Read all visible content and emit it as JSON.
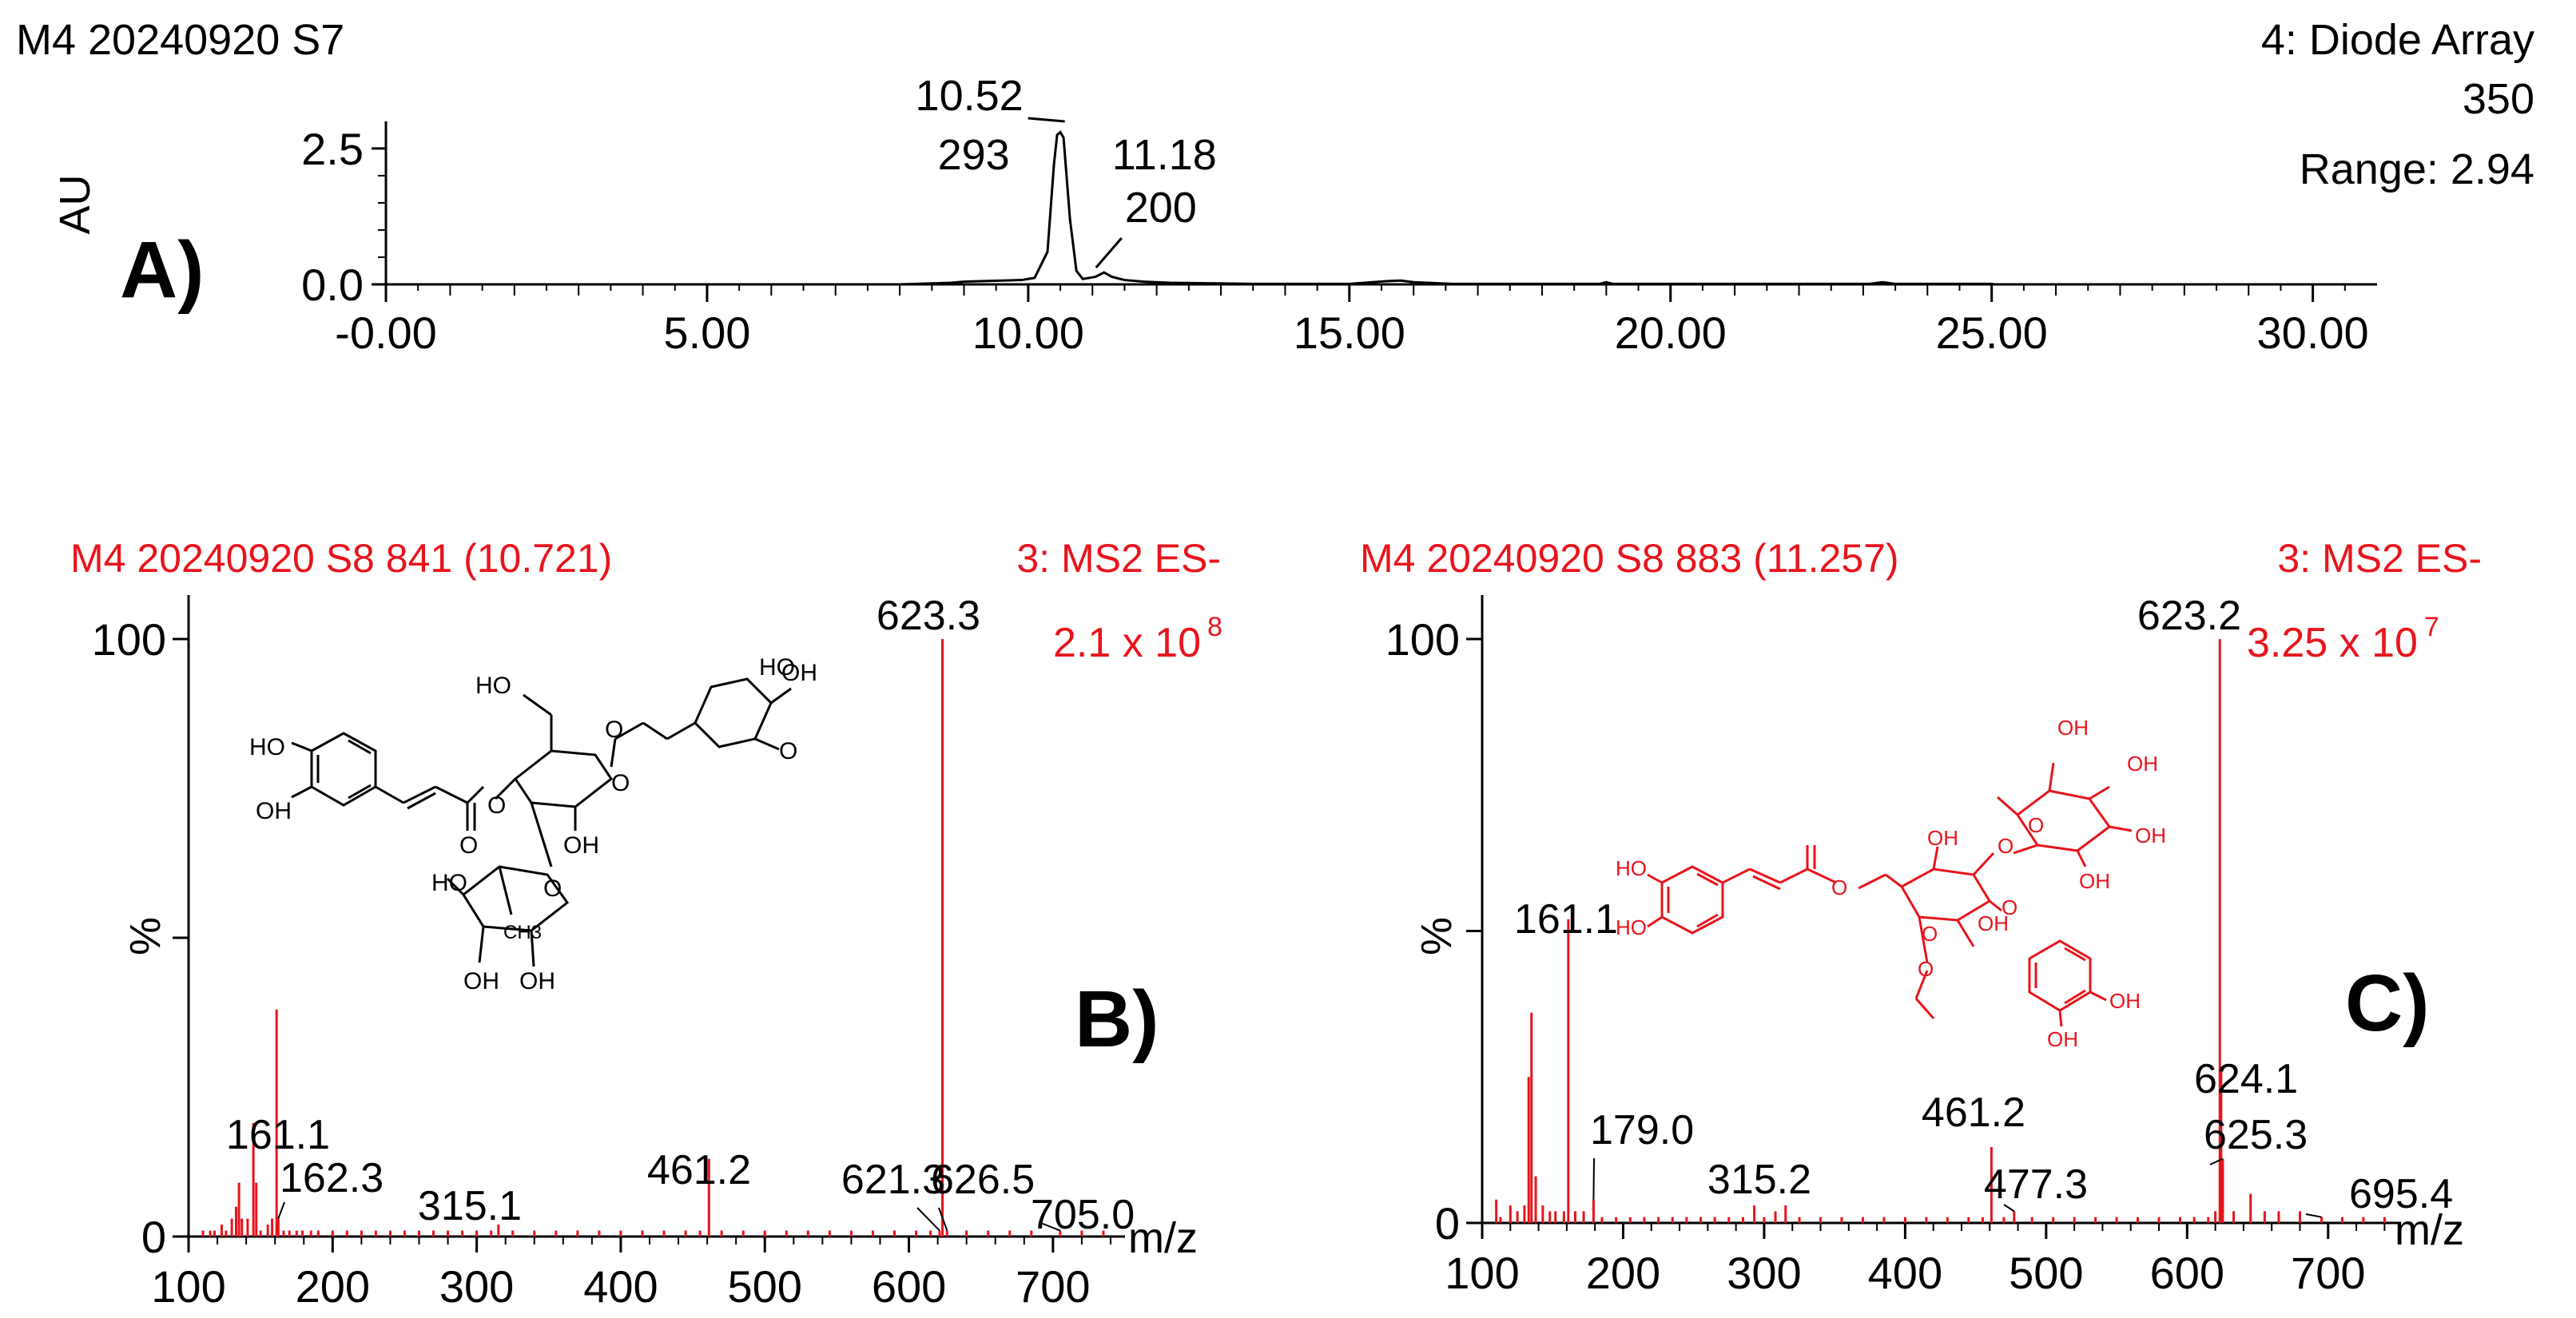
{
  "colors": {
    "ink": "#000000",
    "accent": "#e8141c"
  },
  "chart_data": [
    {
      "panel": "A)",
      "type": "line",
      "header_left": "M4 20240920 S7",
      "header_right": [
        "4: Diode Array",
        "350",
        "Range: 2.94"
      ],
      "ylabel": "AU",
      "xlim": [
        0,
        31
      ],
      "ylim": [
        0,
        2.94
      ],
      "xticks": [
        "-0.00",
        "5.00",
        "10.00",
        "15.00",
        "20.00",
        "25.00",
        "30.00"
      ],
      "xtick_values": [
        0,
        5,
        10,
        15,
        20,
        25,
        30
      ],
      "yticks": [
        "0.0",
        "2.5"
      ],
      "ytick_values": [
        0,
        2.5
      ],
      "peaks": [
        {
          "rt": "10.52",
          "area": "293",
          "x": 10.52
        },
        {
          "rt": "11.18",
          "area": "200",
          "x": 11.18
        }
      ],
      "series": [
        {
          "x": [
            0,
            2,
            4,
            6,
            8,
            8.8,
            9.0,
            9.3,
            9.6,
            9.9,
            10.1,
            10.3,
            10.4,
            10.45,
            10.5,
            10.55,
            10.65,
            10.75,
            10.85,
            10.95,
            11.05,
            11.18,
            11.3,
            11.5,
            11.8,
            12.2,
            12.8,
            13.5,
            15.0,
            15.6,
            15.8,
            16.0,
            16.6,
            18.9,
            19.0,
            19.1,
            23.1,
            23.3,
            23.5,
            25.0,
            25.05,
            31.0
          ],
          "y": [
            0,
            0,
            0,
            0,
            0,
            0.03,
            0.05,
            0.06,
            0.07,
            0.08,
            0.12,
            0.6,
            2.2,
            2.75,
            2.8,
            2.7,
            1.2,
            0.25,
            0.1,
            0.12,
            0.14,
            0.22,
            0.14,
            0.08,
            0.05,
            0.03,
            0.02,
            0.01,
            0.01,
            0.06,
            0.07,
            0.04,
            0.01,
            0.01,
            0.04,
            0.01,
            0.01,
            0.04,
            0.01,
            0.01,
            0.0,
            0.0
          ]
        }
      ]
    },
    {
      "panel": "B)",
      "type": "bar",
      "header_left": "M4 20240920 S8 841 (10.721)",
      "header_right": "3: MS2 ES-",
      "intensity_mantissa": "2.1 x 10",
      "intensity_exponent": "8",
      "ylabel": "%",
      "xlabel": "m/z",
      "xlim": [
        100,
        750
      ],
      "ylim": [
        0,
        100
      ],
      "xticks": [
        "100",
        "200",
        "300",
        "400",
        "500",
        "600",
        "700"
      ],
      "xtick_values": [
        100,
        200,
        300,
        400,
        500,
        600,
        700
      ],
      "yticks": [
        "0",
        "100"
      ],
      "ytick_values": [
        0,
        100
      ],
      "x": [
        110,
        115,
        118,
        123,
        126,
        130,
        133,
        135,
        137,
        141,
        145,
        147,
        150,
        155,
        158,
        161.1,
        162.3,
        166,
        170,
        175,
        179,
        185,
        190,
        200,
        210,
        220,
        230,
        240,
        250,
        260,
        270,
        280,
        290,
        300,
        310,
        315.1,
        325,
        340,
        355,
        370,
        385,
        400,
        415,
        430,
        445,
        455,
        461.2,
        470,
        485,
        500,
        515,
        530,
        545,
        560,
        575,
        590,
        605,
        615,
        621.3,
        623.3,
        626.5,
        640,
        655,
        670,
        685,
        705.0,
        720,
        735
      ],
      "y": [
        1,
        1,
        1,
        2,
        1,
        3,
        5,
        9,
        3,
        3,
        19,
        9,
        1,
        2,
        3,
        38,
        3,
        1,
        1,
        1,
        1,
        1,
        1,
        1,
        1,
        1,
        1,
        1,
        1,
        1,
        1,
        1,
        1,
        1,
        1,
        2,
        1,
        1,
        1,
        1,
        1,
        1,
        1,
        1,
        1,
        1,
        13,
        1,
        1,
        1,
        1,
        1,
        1,
        1,
        1,
        1,
        1,
        1,
        1,
        100,
        1,
        1,
        1,
        1,
        1,
        1,
        1,
        1
      ],
      "labels": [
        {
          "x": 161.1,
          "text": "161.1"
        },
        {
          "x": 162.3,
          "text": "162.3"
        },
        {
          "x": 315.1,
          "text": "315.1"
        },
        {
          "x": 461.2,
          "text": "461.2"
        },
        {
          "x": 621.3,
          "text": "621.3"
        },
        {
          "x": 623.3,
          "text": "623.3"
        },
        {
          "x": 626.5,
          "text": "626.5"
        },
        {
          "x": 705.0,
          "text": "705.0"
        }
      ]
    },
    {
      "panel": "C)",
      "type": "bar",
      "header_left": "M4 20240920 S8 883 (11.257)",
      "header_right": "3: MS2 ES-",
      "intensity_mantissa": "3.25 x 10",
      "intensity_exponent": "7",
      "ylabel": "%",
      "xlabel": "m/z",
      "xlim": [
        100,
        750
      ],
      "ylim": [
        0,
        100
      ],
      "xticks": [
        "100",
        "200",
        "300",
        "400",
        "500",
        "600",
        "700"
      ],
      "xtick_values": [
        100,
        200,
        300,
        400,
        500,
        600,
        700
      ],
      "yticks": [
        "0",
        "100"
      ],
      "ytick_values": [
        0,
        100
      ],
      "x": [
        110,
        113,
        120,
        125,
        130,
        133,
        135,
        138,
        143,
        148,
        152,
        158,
        161.1,
        166,
        172,
        179.0,
        185,
        195,
        205,
        215,
        225,
        235,
        245,
        255,
        265,
        275,
        285,
        293,
        300,
        308,
        315.2,
        325,
        340,
        355,
        370,
        385,
        400,
        415,
        430,
        445,
        455,
        461.2,
        470,
        477.3,
        490,
        505,
        520,
        535,
        550,
        565,
        580,
        595,
        605,
        615,
        620,
        623.2,
        624.1,
        625.3,
        633,
        645,
        655,
        665,
        680,
        695.4,
        710,
        725,
        740
      ],
      "y": [
        4,
        1,
        3,
        2,
        3,
        25,
        36,
        8,
        3,
        2,
        2,
        2,
        52,
        2,
        2,
        4,
        1,
        1,
        1,
        1,
        1,
        1,
        1,
        1,
        1,
        1,
        1,
        3,
        1,
        2,
        3,
        1,
        1,
        1,
        1,
        1,
        1,
        1,
        1,
        1,
        1,
        13,
        1,
        2,
        1,
        1,
        1,
        1,
        1,
        1,
        1,
        1,
        1,
        1,
        2,
        100,
        26,
        11,
        2,
        5,
        2,
        2,
        2,
        1,
        1,
        1,
        1
      ],
      "labels": [
        {
          "x": 161.1,
          "text": "161.1"
        },
        {
          "x": 179.0,
          "text": "179.0"
        },
        {
          "x": 315.2,
          "text": "315.2"
        },
        {
          "x": 461.2,
          "text": "461.2"
        },
        {
          "x": 477.3,
          "text": "477.3"
        },
        {
          "x": 623.2,
          "text": "623.2"
        },
        {
          "x": 624.1,
          "text": "624.1"
        },
        {
          "x": 625.3,
          "text": "625.3"
        },
        {
          "x": 695.4,
          "text": "695.4"
        }
      ]
    }
  ],
  "structure_b": {
    "atoms": [
      "HO",
      "O",
      "OH",
      "OH",
      "HO",
      "HO",
      "O",
      "O",
      "O",
      "OH",
      "O",
      "HO",
      "CH3",
      "OH",
      "OH",
      "O"
    ]
  },
  "structure_c": {
    "atoms": [
      "OH",
      "OH",
      "OH",
      "O",
      "OH",
      "O",
      "O",
      "OH",
      "HO",
      "HO",
      "O",
      "O",
      "OH",
      "O",
      "OH",
      "OH"
    ]
  }
}
